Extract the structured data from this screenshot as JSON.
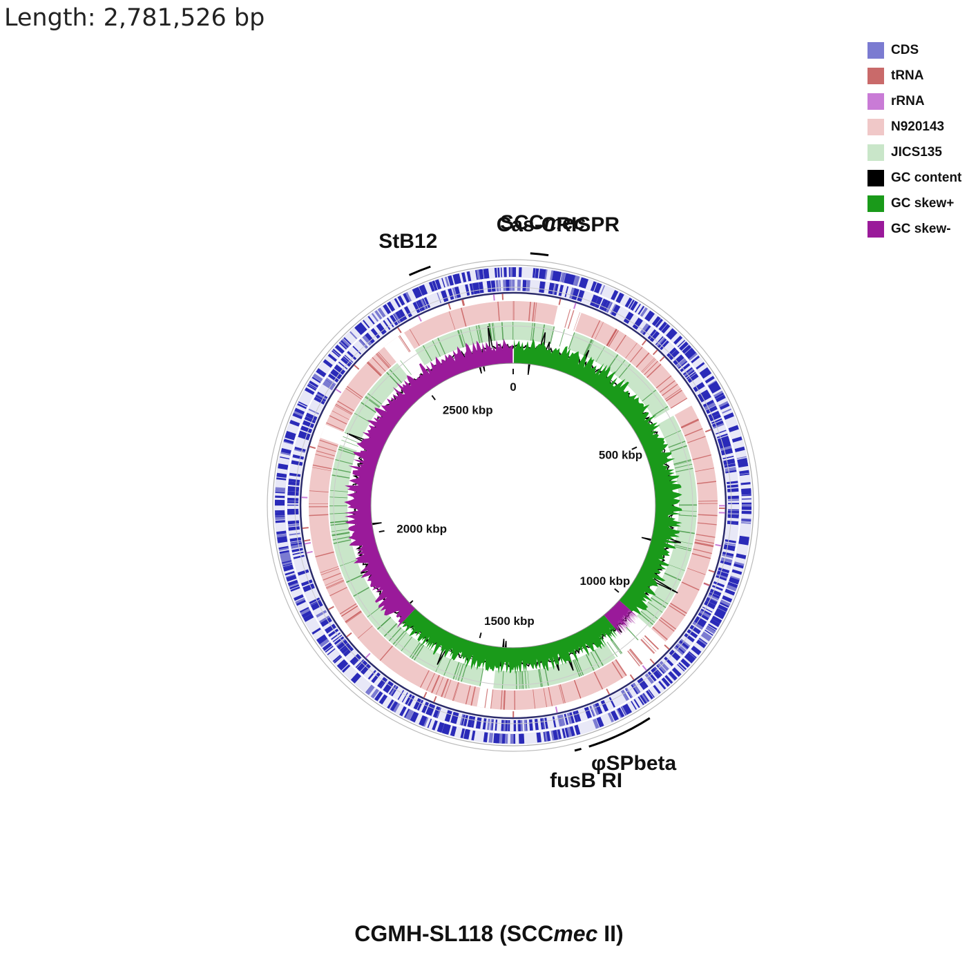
{
  "header": {
    "length_label": "Length: 2,781,526 bp"
  },
  "legend": [
    {
      "label": "CDS",
      "color": "#7b7bd1"
    },
    {
      "label": "tRNA",
      "color": "#c96a6a"
    },
    {
      "label": "rRNA",
      "color": "#c97bd6"
    },
    {
      "label": "N920143",
      "color": "#f0c8c8"
    },
    {
      "label": "JICS135",
      "color": "#c9e6c9"
    },
    {
      "label": "GC content",
      "color": "#000000"
    },
    {
      "label": "GC skew+",
      "color": "#1a9a1a"
    },
    {
      "label": "GC skew-",
      "color": "#9a1a9a"
    }
  ],
  "genome": {
    "length_bp": 2781526
  },
  "scale_ticks": [
    {
      "label": "0",
      "kbp": 0
    },
    {
      "label": "500 kbp",
      "kbp": 500
    },
    {
      "label": "1000 kbp",
      "kbp": 1000
    },
    {
      "label": "1500 kbp",
      "kbp": 1500
    },
    {
      "label": "2000 kbp",
      "kbp": 2000
    },
    {
      "label": "2500 kbp",
      "kbp": 2500
    }
  ],
  "regions": [
    {
      "prefix": "SCC",
      "italic": "mec",
      "kbp_start": 30,
      "kbp_end": 62
    },
    {
      "prefix": "Cas-CRISPR",
      "italic": "",
      "kbp_start": 70,
      "kbp_end": 70
    },
    {
      "prefix": "StB12",
      "italic": "",
      "kbp_start": 2594,
      "kbp_end": 2634
    },
    {
      "prefix": "φSPbeta",
      "italic": "",
      "kbp_start": 1138,
      "kbp_end": 1256
    },
    {
      "prefix": "fusB RI",
      "italic": "",
      "kbp_start": 1270,
      "kbp_end": 1282
    }
  ],
  "caption": {
    "prefix": "CGMH-SL118 (SCC",
    "italic": "mec",
    "suffix": " II)"
  }
}
